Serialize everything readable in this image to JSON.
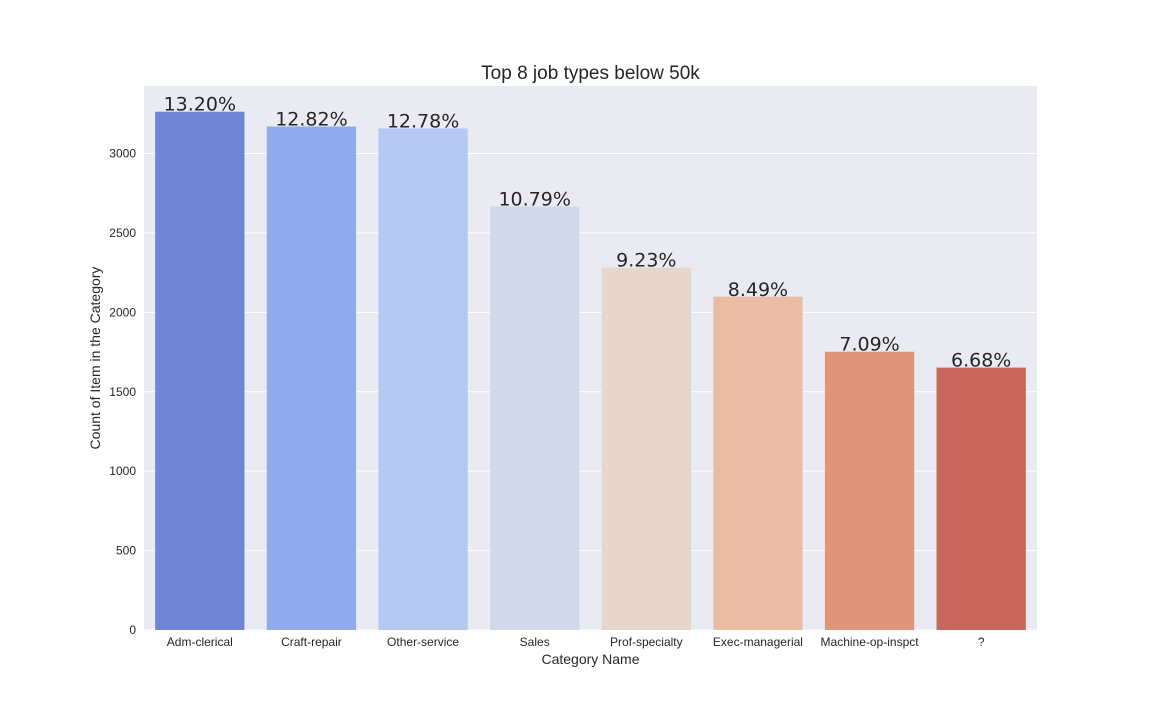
{
  "chart_data": {
    "type": "bar",
    "title": "Top 8 job types below 50k",
    "xlabel": "Category Name",
    "ylabel": "Count of Item in the Category",
    "categories": [
      "Adm-clerical",
      "Craft-repair",
      "Other-service",
      "Sales",
      "Prof-specialty",
      "Exec-managerial",
      "Machine-op-inspct",
      "?"
    ],
    "values": [
      3263,
      3170,
      3158,
      2667,
      2281,
      2098,
      1752,
      1652
    ],
    "data_labels": [
      "13.20%",
      "12.82%",
      "12.78%",
      "10.79%",
      "9.23%",
      "8.49%",
      "7.09%",
      "6.68%"
    ],
    "bar_colors": [
      "#6f86d6",
      "#90acec",
      "#b5c8f2",
      "#d1daea",
      "#e6d6cc",
      "#ecbba3",
      "#e0957b",
      "#c8675c"
    ],
    "yticks": [
      0,
      500,
      1000,
      1500,
      2000,
      2500,
      3000
    ],
    "ylim": [
      0,
      3425
    ],
    "grid": true,
    "background_color": "#eaeaf2",
    "grid_color": "#ffffff",
    "text_color": "#262626"
  }
}
